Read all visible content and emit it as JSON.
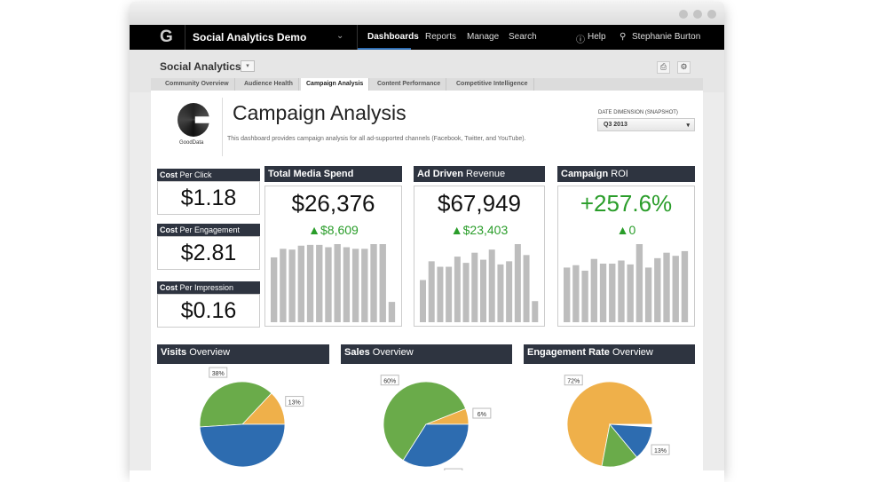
{
  "app": {
    "title": "Social Analytics Demo",
    "nav": [
      "Dashboards",
      "Reports",
      "Manage",
      "Search"
    ],
    "active_nav": "Dashboards",
    "help": "Help",
    "user": "Stephanie Burton"
  },
  "dashboard": {
    "name": "Social Analytics",
    "tabs": [
      "Community Overview",
      "Audience Health",
      "Campaign Analysis",
      "Content Performance",
      "Competitive Intelligence"
    ],
    "active_tab": "Campaign Analysis"
  },
  "page": {
    "logo_text": "GoodData",
    "title": "Campaign Analysis",
    "description": "This dashboard provides campaign analysis for all ad-supported channels (Facebook, Twitter, and YouTube).",
    "filter_label": "DATE DIMENSION (SNAPSHOT)",
    "filter_value": "Q3 2013"
  },
  "kpis": [
    {
      "bold": "Cost",
      "rest": " Per Click",
      "value": "$1.18"
    },
    {
      "bold": "Cost",
      "rest": " Per Engagement",
      "value": "$2.81"
    },
    {
      "bold": "Cost",
      "rest": " Per Impression",
      "value": "$0.16"
    }
  ],
  "colors": {
    "header": "#2e3440",
    "bar": "#bdbdbd",
    "up": "#2a9d2a",
    "blue": "#2d6cb0",
    "green": "#6aab4a",
    "orange": "#efb04a"
  },
  "chart_data": [
    {
      "type": "bar",
      "title_bold": "Total Media Spend",
      "title_rest": "",
      "value": "$26,376",
      "change": "$8,609",
      "values": [
        83,
        94,
        93,
        98,
        99,
        99,
        96,
        100,
        96,
        94,
        94,
        100,
        100,
        26
      ]
    },
    {
      "type": "bar",
      "title_bold": "Ad Driven",
      "title_rest": " Revenue",
      "value": "$67,949",
      "change": "$23,403",
      "values": [
        54,
        78,
        71,
        71,
        84,
        76,
        89,
        80,
        93,
        74,
        78,
        100,
        86,
        27
      ]
    },
    {
      "type": "bar",
      "title_bold": "Campaign",
      "title_rest": " ROI",
      "value": "+257.6%",
      "change": "0",
      "values": [
        70,
        73,
        66,
        81,
        75,
        75,
        79,
        74,
        100,
        70,
        82,
        89,
        85,
        91
      ]
    },
    {
      "type": "pie",
      "title_bold": "Visits",
      "title_rest": " Overview",
      "slices": [
        {
          "label": "13%",
          "value": 13,
          "color": "orange"
        },
        {
          "label": "38%",
          "value": 38,
          "color": "green"
        },
        {
          "label": "49%",
          "value": 49,
          "color": "blue"
        }
      ]
    },
    {
      "type": "pie",
      "title_bold": "Sales",
      "title_rest": " Overview",
      "slices": [
        {
          "label": "6%",
          "value": 6,
          "color": "orange"
        },
        {
          "label": "60%",
          "value": 60,
          "color": "green"
        },
        {
          "label": "34%",
          "value": 34,
          "color": "blue"
        }
      ]
    },
    {
      "type": "pie",
      "title_bold": "Engagement Rate",
      "title_rest": " Overview",
      "slices": [
        {
          "label": "72%",
          "value": 72,
          "color": "orange"
        },
        {
          "label": "14%",
          "value": 14,
          "color": "green"
        },
        {
          "label": "13%",
          "value": 13,
          "color": "blue"
        }
      ]
    }
  ]
}
